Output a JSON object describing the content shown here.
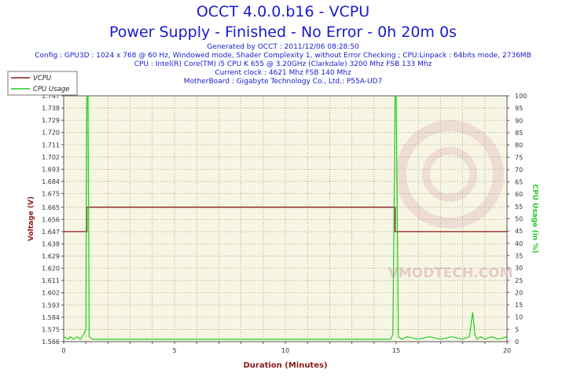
{
  "header": {
    "title": "OCCT 4.0.0.b16 - VCPU",
    "subtitle": "Power Supply - Finished - No Error - 0h 20m 0s",
    "info_lines": [
      "Generated by OCCT : 2011/12/06 08:28:50",
      "Config : GPU3D : 1024 x 768 @ 60 Hz, Windowed mode, Shader Complexity 1, without Error Checking ; CPU:Linpack : 64bits mode, 2736MB",
      "CPU : Intel(R) Core(TM) i5 CPU K 655 @ 3.20GHz (Clarkdale) 3200 Mhz FSB 133 Mhz",
      "Current clock : 4621 Mhz FSB 140 Mhz",
      "MotherBoard : Gigabyte Technology Co., Ltd.: P55A-UD7"
    ]
  },
  "watermark": "VMODTECH.COM",
  "colors": {
    "vcpu": "#8b1a1a",
    "cpu_usage": "#22cc22",
    "plot_bg": "#f7f6e4",
    "grid": "#9a9a7a",
    "title": "#1a1acc",
    "axis_label": "#8b1a1a",
    "right_label": "#22cc22"
  },
  "chart_data": {
    "type": "line",
    "xlabel": "Duration (Minutes)",
    "ylabel": "Voltage (V)",
    "y2label": "CPU Usage (in %)",
    "xlim": [
      0,
      20
    ],
    "ylim": [
      1.566,
      1.747
    ],
    "y2lim": [
      0,
      100
    ],
    "x_ticks": [
      0,
      5,
      10,
      15,
      20
    ],
    "y_ticks": [
      1.566,
      1.575,
      1.584,
      1.593,
      1.602,
      1.611,
      1.62,
      1.629,
      1.638,
      1.647,
      1.656,
      1.665,
      1.675,
      1.684,
      1.693,
      1.702,
      1.711,
      1.72,
      1.729,
      1.738,
      1.747
    ],
    "y_tick_labels": [
      "1.566",
      "1.575",
      "1.584",
      "1.593",
      "1.602",
      "1.611",
      "1.620",
      "1.629",
      "1.638",
      "1.647",
      "1.656",
      "1.665",
      "1.675",
      "1.684",
      "1.693",
      "1.702",
      "1.711",
      "1.720",
      "1.729",
      "1.738",
      "1.747"
    ],
    "y2_ticks": [
      0,
      5,
      10,
      15,
      20,
      25,
      30,
      35,
      40,
      45,
      50,
      55,
      60,
      65,
      70,
      75,
      80,
      85,
      90,
      95,
      100
    ],
    "legend": {
      "placement": "top-left",
      "entries": [
        "VCPU",
        "CPU Usage"
      ]
    },
    "grid": true,
    "series": [
      {
        "name": "VCPU",
        "axis": "left",
        "x": [
          0,
          1.05,
          1.05,
          14.95,
          14.95,
          20
        ],
        "y": [
          1.647,
          1.647,
          1.665,
          1.665,
          1.647,
          1.647
        ]
      },
      {
        "name": "CPU Usage",
        "axis": "right",
        "x": [
          0,
          0.2,
          0.3,
          0.45,
          0.6,
          0.75,
          0.9,
          1.0,
          1.05,
          1.1,
          1.15,
          1.3,
          14.75,
          14.85,
          14.95,
          15.0,
          15.1,
          15.25,
          15.5,
          16.0,
          16.5,
          17.0,
          17.5,
          18.0,
          18.3,
          18.45,
          18.55,
          18.65,
          18.8,
          19.0,
          19.3,
          19.6,
          20
        ],
        "y": [
          2,
          1,
          2,
          1,
          2,
          1,
          3,
          5,
          100,
          100,
          2,
          1,
          1,
          3,
          100,
          100,
          2,
          1,
          2,
          1,
          2,
          1,
          2,
          1,
          2,
          12,
          3,
          1,
          2,
          1,
          2,
          1,
          2
        ]
      }
    ]
  }
}
